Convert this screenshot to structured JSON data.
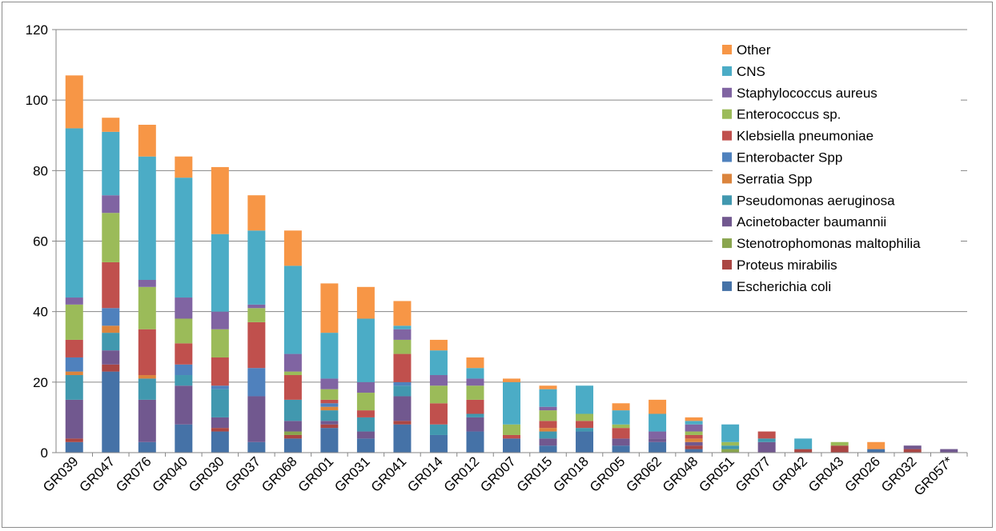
{
  "chart_data": {
    "type": "bar",
    "stacked": true,
    "title": "",
    "xlabel": "",
    "ylabel": "",
    "ylim": [
      0,
      120
    ],
    "yticks": [
      0,
      20,
      40,
      60,
      80,
      100,
      120
    ],
    "grid": true,
    "legend_position": "top-right",
    "categories": [
      "GR039",
      "GR047",
      "GR076",
      "GR040",
      "GR030",
      "GR037",
      "GR068",
      "GR001",
      "GR031",
      "GR041",
      "GR014",
      "GR012",
      "GR007",
      "GR015",
      "GR018",
      "GR005",
      "GR062",
      "GR048",
      "GR051",
      "GR077",
      "GR042",
      "GR043",
      "GR026",
      "GR032",
      "GR057*"
    ],
    "series": [
      {
        "name": "Escherichia coli",
        "color": "#4572A7",
        "values": [
          3,
          23,
          3,
          8,
          6,
          3,
          4,
          7,
          4,
          8,
          5,
          6,
          4,
          2,
          6,
          2,
          3,
          1,
          0,
          0,
          0,
          0,
          1,
          0,
          0
        ]
      },
      {
        "name": "Proteus mirabilis",
        "color": "#AA4643",
        "values": [
          1,
          2,
          0,
          0,
          1,
          0,
          1,
          1,
          0,
          1,
          0,
          0,
          0,
          0,
          0,
          0,
          0,
          1,
          0,
          0,
          1,
          2,
          0,
          1,
          0
        ]
      },
      {
        "name": "Stenotrophomonas maltophilia",
        "color": "#89A54E",
        "values": [
          0,
          0,
          0,
          0,
          0,
          0,
          1,
          0,
          0,
          0,
          0,
          0,
          0,
          0,
          0,
          0,
          0,
          0,
          1,
          0,
          0,
          0,
          0,
          0,
          0
        ]
      },
      {
        "name": "Acinetobacter baumannii",
        "color": "#71588F",
        "values": [
          11,
          4,
          12,
          11,
          3,
          13,
          3,
          1,
          2,
          7,
          0,
          4,
          0,
          2,
          0,
          2,
          1,
          1,
          0,
          3,
          0,
          0,
          0,
          1,
          1
        ]
      },
      {
        "name": "Pseudomonas aeruginosa",
        "color": "#4198AF",
        "values": [
          7,
          5,
          6,
          3,
          8,
          0,
          6,
          3,
          4,
          3,
          3,
          1,
          0,
          2,
          1,
          0,
          0,
          0,
          1,
          1,
          0,
          0,
          0,
          0,
          0
        ]
      },
      {
        "name": "Serratia Spp",
        "color": "#DB843D",
        "values": [
          1,
          2,
          1,
          0,
          0,
          0,
          0,
          1,
          0,
          0,
          0,
          0,
          0,
          1,
          0,
          0,
          0,
          1,
          0,
          0,
          0,
          0,
          0,
          0,
          0
        ]
      },
      {
        "name": "Enterobacter Spp",
        "color": "#4F81BD",
        "values": [
          4,
          5,
          0,
          3,
          1,
          8,
          0,
          1,
          0,
          1,
          0,
          0,
          0,
          0,
          0,
          0,
          0,
          0,
          0,
          0,
          0,
          0,
          0,
          0,
          0
        ]
      },
      {
        "name": "Klebsiella pneumoniae",
        "color": "#C0504D",
        "values": [
          5,
          13,
          13,
          6,
          8,
          13,
          7,
          1,
          2,
          8,
          6,
          4,
          1,
          2,
          2,
          3,
          0,
          1,
          0,
          2,
          0,
          0,
          0,
          0,
          0
        ]
      },
      {
        "name": "Enterococcus sp.",
        "color": "#9BBB59",
        "values": [
          10,
          14,
          12,
          7,
          8,
          4,
          1,
          3,
          5,
          4,
          5,
          4,
          3,
          3,
          2,
          1,
          0,
          1,
          1,
          0,
          0,
          1,
          0,
          0,
          0
        ]
      },
      {
        "name": "Staphylococcus aureus",
        "color": "#8064A2",
        "values": [
          2,
          5,
          2,
          6,
          5,
          1,
          5,
          3,
          3,
          3,
          3,
          2,
          0,
          1,
          0,
          0,
          2,
          2,
          0,
          0,
          0,
          0,
          0,
          0,
          0
        ]
      },
      {
        "name": "CNS",
        "color": "#4BACC6",
        "values": [
          48,
          18,
          35,
          34,
          22,
          21,
          25,
          13,
          18,
          1,
          7,
          3,
          12,
          5,
          8,
          4,
          5,
          1,
          5,
          0,
          3,
          0,
          0,
          0,
          0
        ]
      },
      {
        "name": "Other",
        "color": "#F79646",
        "values": [
          15,
          4,
          9,
          6,
          19,
          10,
          10,
          14,
          9,
          7,
          3,
          3,
          1,
          1,
          0,
          2,
          4,
          1,
          0,
          0,
          0,
          0,
          2,
          0,
          0
        ]
      }
    ]
  }
}
